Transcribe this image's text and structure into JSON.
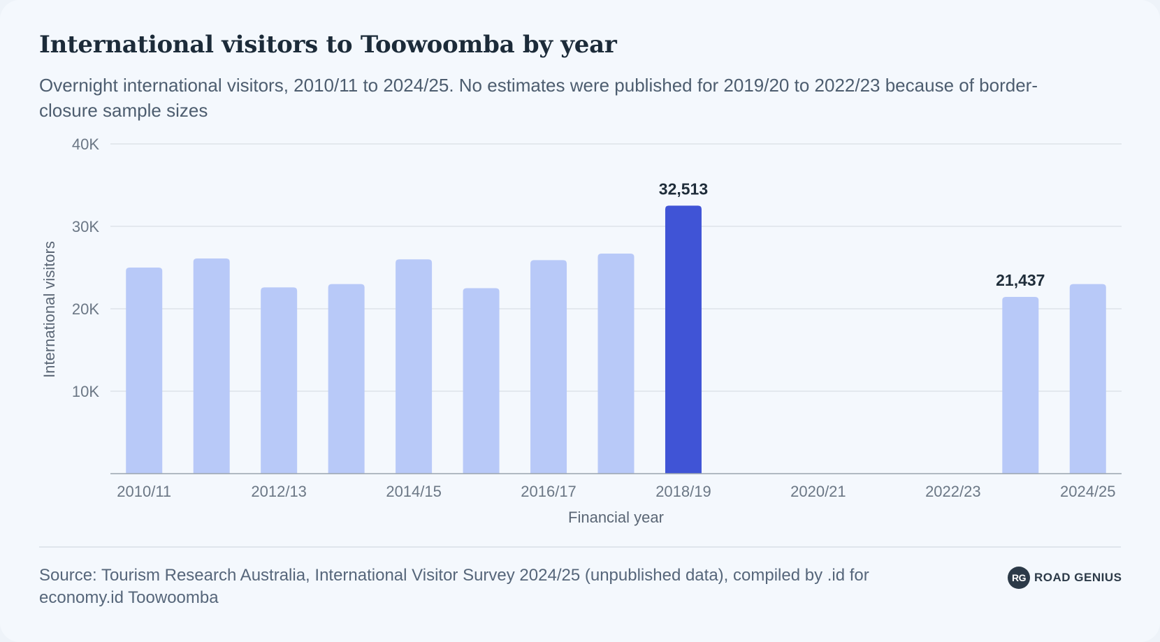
{
  "header": {
    "title": "International visitors to Toowoomba by year",
    "subtitle": "Overnight international visitors, 2010/11 to 2024/25. No estimates were published for 2019/20 to 2022/23 because of border-closure sample sizes"
  },
  "footer": {
    "source": "Source: Tourism Research Australia, International Visitor Survey 2024/25 (unpublished data), compiled by .id for economy.id Toowoomba",
    "brand_logo": "RG",
    "brand_name": "ROAD GENIUS"
  },
  "colors": {
    "bar": "#b8c9f8",
    "bar_highlight": "#4054d6",
    "grid": "#dde3ea",
    "axis": "#9aa4ae",
    "tick_text": "#6b7785",
    "label_text": "#5a6675",
    "data_label": "#1f2d3a"
  },
  "chart_data": {
    "type": "bar",
    "title": "International visitors to Toowoomba by year",
    "xlabel": "Financial year",
    "ylabel": "International visitors",
    "ylim": [
      0,
      40000
    ],
    "yticks": [
      10000,
      20000,
      30000,
      40000
    ],
    "ytick_labels": [
      "10K",
      "20K",
      "30K",
      "40K"
    ],
    "grid": true,
    "categories": [
      "2010/11",
      "2011/12",
      "2012/13",
      "2013/14",
      "2014/15",
      "2015/16",
      "2016/17",
      "2017/18",
      "2018/19",
      "2019/20",
      "2020/21",
      "2021/22",
      "2022/23",
      "2023/24",
      "2024/25"
    ],
    "xtick_labels": [
      "2010/11",
      "",
      "2012/13",
      "",
      "2014/15",
      "",
      "2016/17",
      "",
      "2018/19",
      "",
      "2020/21",
      "",
      "2022/23",
      "",
      "2024/25"
    ],
    "values": [
      25000,
      26100,
      22600,
      23000,
      26000,
      22500,
      25900,
      26700,
      32513,
      null,
      null,
      null,
      null,
      21437,
      23000
    ],
    "highlight": [
      "2018/19"
    ],
    "data_labels": [
      {
        "category": "2018/19",
        "text": "32,513"
      },
      {
        "category": "2023/24",
        "text": "21,437"
      }
    ]
  }
}
